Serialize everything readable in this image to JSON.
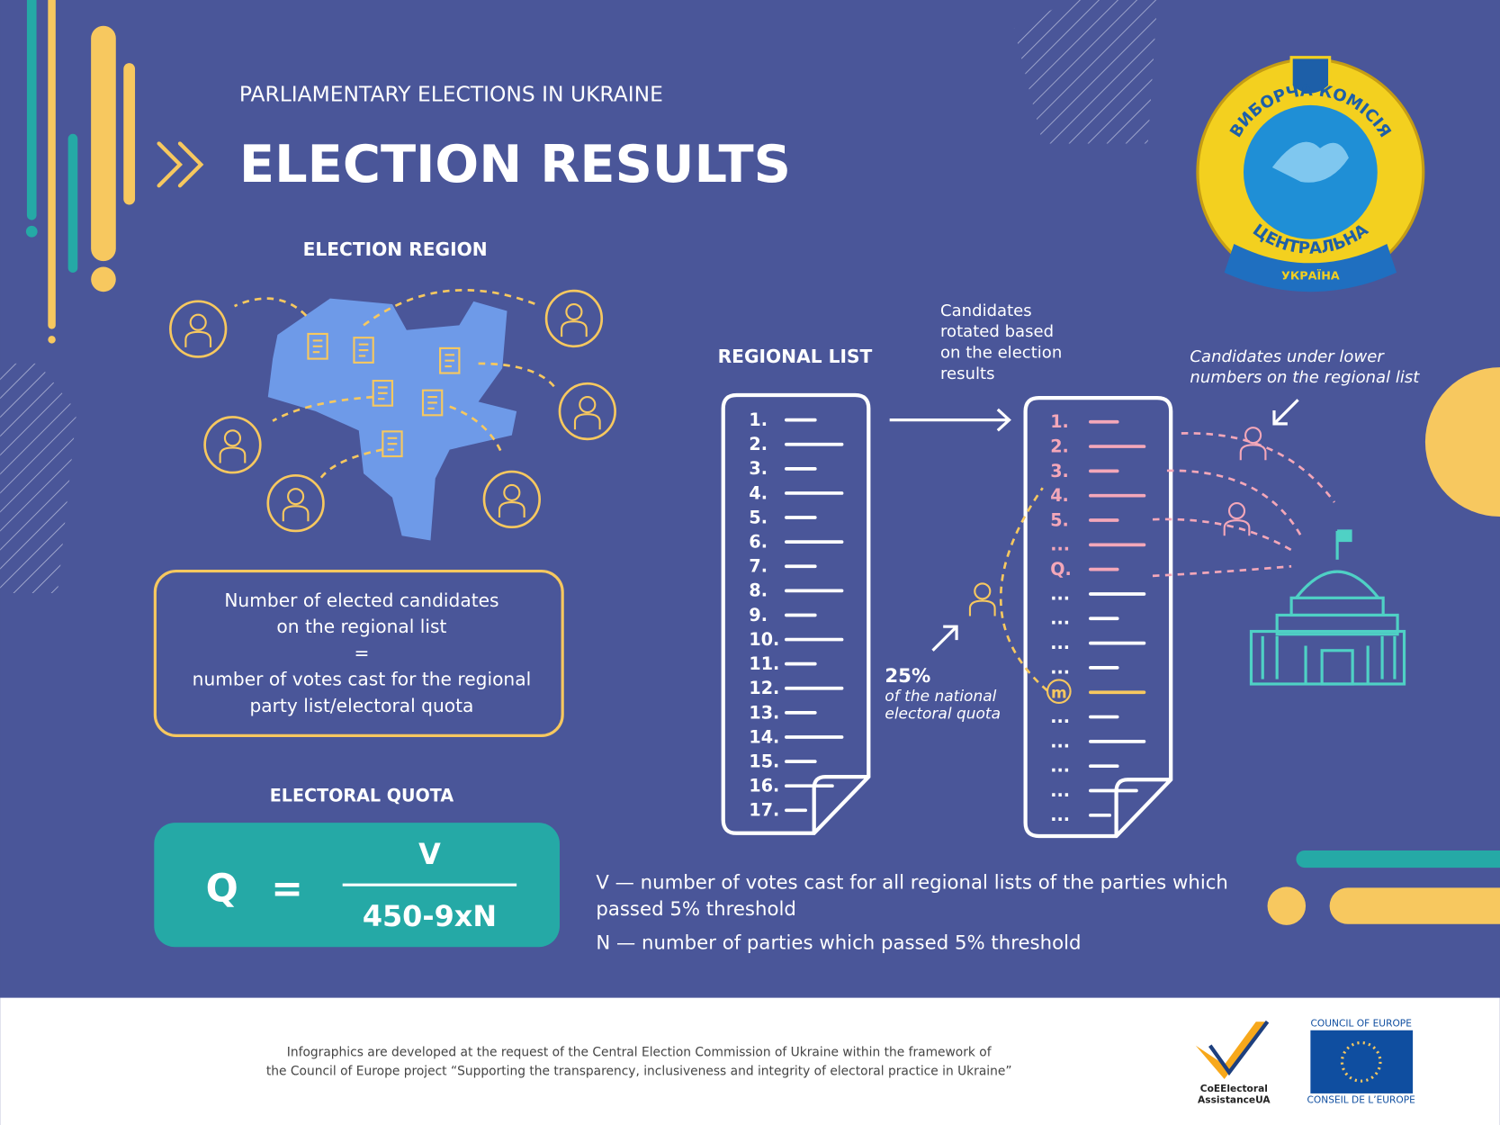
{
  "header": {
    "subtitle": "PARLIAMENTARY ELECTIONS IN UKRAINE",
    "title": "ELECTION RESULTS"
  },
  "emblem": {
    "top": "ВИБОРЧА КОМІСІЯ",
    "bottom": "ЦЕНТРАЛЬНА",
    "banner": "УКРАЇНА"
  },
  "region": {
    "heading": "ELECTION REGION",
    "formula": [
      "Number of elected candidates",
      "on the regional list",
      "=",
      "number of votes cast for the regional",
      "party list/electoral quota"
    ]
  },
  "quota": {
    "heading": "ELECTORAL QUOTA",
    "symbol": "Q",
    "equals": "=",
    "numerator": "V",
    "denominator": "450-9xN"
  },
  "definitions": {
    "v": [
      "V — number of votes cast for all regional lists of the parties which",
      "passed 5% threshold"
    ],
    "n": "N — number of parties which passed 5% threshold"
  },
  "regional_list": {
    "heading": "REGIONAL LIST",
    "items": [
      "1.",
      "2.",
      "3.",
      "4.",
      "5.",
      "6.",
      "7.",
      "8.",
      "9.",
      "10.",
      "11.",
      "12.",
      "13.",
      "14.",
      "15.",
      "16.",
      "17."
    ]
  },
  "rotated_list": {
    "note": [
      "Candidates",
      "rotated based",
      "on the election",
      "results"
    ],
    "items": [
      "1.",
      "2.",
      "3.",
      "4.",
      "5.",
      "...",
      "Q.",
      "...",
      "...",
      "...",
      "...",
      "m",
      "...",
      "...",
      "...",
      "...",
      "..."
    ]
  },
  "lower_note": [
    "Candidates under lower",
    "numbers on the regional list"
  ],
  "quota_note": {
    "percent": "25%",
    "text": [
      "of the national",
      "electoral quota"
    ]
  },
  "footer": {
    "text": [
      "Infographics are developed at the request of the Central Election Commission of Ukraine within the framework of",
      "the Council of Europe project  “Supporting the transparency, inclusiveness and integrity of electoral practice in Ukraine”"
    ],
    "logo1": [
      "CoEElectoral",
      "AssistanceUA"
    ],
    "logo2_top": "COUNCIL OF EUROPE",
    "logo2_bottom": "CONSEIL DE L’EUROPE"
  }
}
